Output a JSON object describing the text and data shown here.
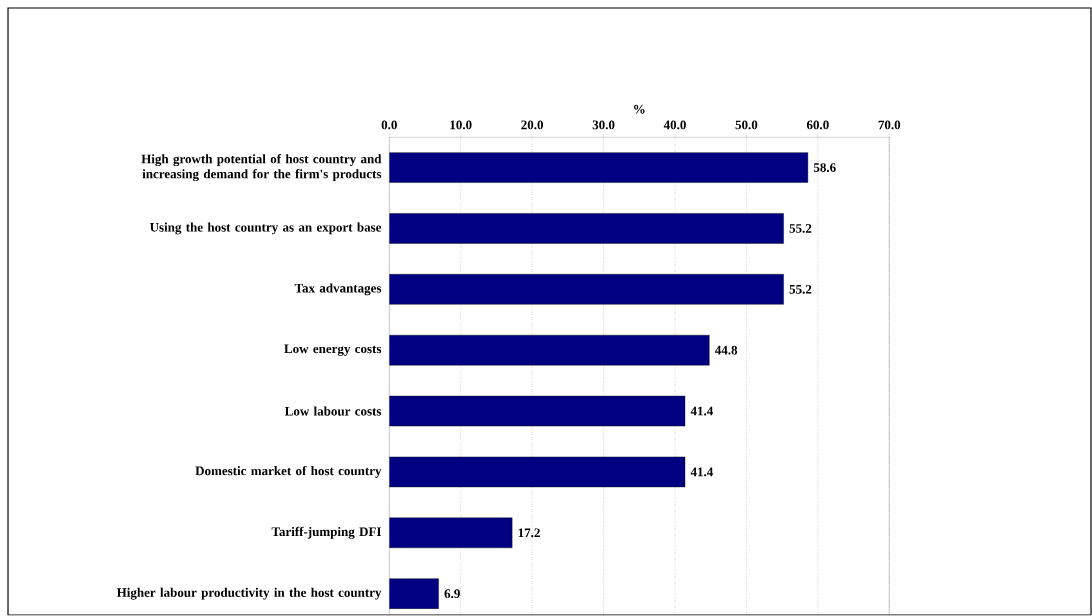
{
  "chart_data": {
    "type": "bar",
    "orientation": "horizontal",
    "xlabel": "%",
    "categories": [
      "High growth potential of host country and increasing demand for the firm's products",
      "Using the host country as an export base",
      "Tax advantages",
      "Low energy costs",
      "Low labour costs",
      "Domestic market of host country",
      "Tariff-jumping DFI",
      "Higher labour productivity in the host country"
    ],
    "values": [
      58.6,
      55.2,
      55.2,
      44.8,
      41.4,
      41.4,
      17.2,
      6.9
    ],
    "color": "#000080",
    "data_labels": true,
    "grid": "x",
    "xlim": [
      0,
      70
    ],
    "xticks": [
      {
        "value": 0,
        "label": "0.0"
      },
      {
        "value": 10,
        "label": "10.0"
      },
      {
        "value": 20,
        "label": "20.0"
      },
      {
        "value": 30,
        "label": "30.0"
      },
      {
        "value": 40,
        "label": "40.0"
      },
      {
        "value": 50,
        "label": "50.0"
      },
      {
        "value": 60,
        "label": "60.0"
      },
      {
        "value": 70,
        "label": "70.0"
      }
    ]
  }
}
